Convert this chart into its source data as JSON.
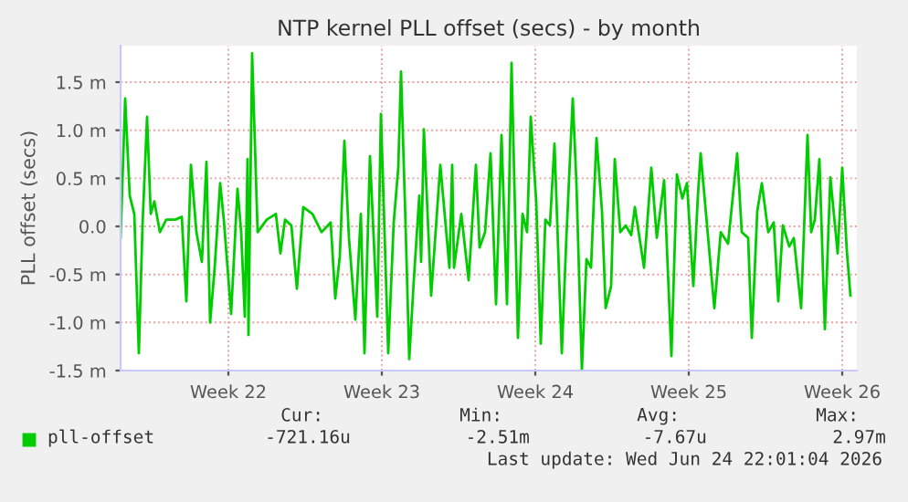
{
  "chart_data": {
    "type": "line",
    "title": "NTP kernel PLL offset (secs) - by month",
    "ylabel": "PLL offset (secs)",
    "x": [
      "2026-05-23T16:00",
      "2026-05-23T21:00",
      "2026-05-24T02:00",
      "2026-05-24T07:00",
      "2026-05-24T12:00",
      "2026-05-24T16:00",
      "2026-05-24T21:00",
      "2026-05-25T01:00",
      "2026-05-25T05:00",
      "2026-05-25T11:00",
      "2026-05-25T18:00",
      "2026-05-26T04:00",
      "2026-05-26T11:00",
      "2026-05-26T16:00",
      "2026-05-26T21:00",
      "2026-05-27T03:00",
      "2026-05-27T09:00",
      "2026-05-27T14:00",
      "2026-05-27T18:00",
      "2026-05-27T23:00",
      "2026-05-28T05:00",
      "2026-05-28T09:00",
      "2026-05-28T17:00",
      "2026-05-29T00:00",
      "2026-05-29T04:00",
      "2026-05-29T08:00",
      "2026-05-29T11:00",
      "2026-05-29T12:00",
      "2026-05-29T16:00",
      "2026-05-29T22:00",
      "2026-05-30T08:00",
      "2026-05-30T18:00",
      "2026-05-30T23:00",
      "2026-05-31T04:00",
      "2026-05-31T11:00",
      "2026-05-31T17:00",
      "2026-06-01T00:00",
      "2026-06-01T10:00",
      "2026-06-01T20:00",
      "2026-06-02T06:00",
      "2026-06-02T11:00",
      "2026-06-02T16:00",
      "2026-06-02T21:00",
      "2026-06-03T02:00",
      "2026-06-03T09:00",
      "2026-06-03T15:00",
      "2026-06-03T19:00",
      "2026-06-04T01:00",
      "2026-06-04T09:00",
      "2026-06-04T13:00",
      "2026-06-04T21:00",
      "2026-06-05T03:00",
      "2026-06-05T08:00",
      "2026-06-05T11:00",
      "2026-06-05T16:00",
      "2026-06-05T20:00",
      "2026-06-06T01:00",
      "2026-06-06T07:00",
      "2026-06-06T09:00",
      "2026-06-06T12:00",
      "2026-06-06T20:00",
      "2026-06-07T06:00",
      "2026-06-07T16:00",
      "2026-06-07T19:00",
      "2026-06-07T21:00",
      "2026-06-08T05:00",
      "2026-06-08T13:00",
      "2026-06-08T21:00",
      "2026-06-09T01:00",
      "2026-06-09T07:00",
      "2026-06-09T13:00",
      "2026-06-09T19:00",
      "2026-06-10T01:00",
      "2026-06-10T07:00",
      "2026-06-10T12:00",
      "2026-06-10T19:00",
      "2026-06-11T00:00",
      "2026-06-11T05:00",
      "2026-06-11T09:00",
      "2026-06-11T15:00",
      "2026-06-11T20:00",
      "2026-06-12T01:00",
      "2026-06-12T06:00",
      "2026-06-12T11:00",
      "2026-06-12T19:00",
      "2026-06-13T00:00",
      "2026-06-13T07:00",
      "2026-06-13T11:00",
      "2026-06-13T17:00",
      "2026-06-13T22:00",
      "2026-06-14T03:00",
      "2026-06-14T09:00",
      "2026-06-14T15:00",
      "2026-06-14T19:00",
      "2026-06-15T01:00",
      "2026-06-15T05:00",
      "2026-06-15T11:00",
      "2026-06-15T17:00",
      "2026-06-15T23:00",
      "2026-06-16T03:00",
      "2026-06-16T13:00",
      "2026-06-16T21:00",
      "2026-06-17T03:00",
      "2026-06-17T11:00",
      "2026-06-17T19:00",
      "2026-06-18T01:00",
      "2026-06-18T07:00",
      "2026-06-18T12:00",
      "2026-06-18T19:00",
      "2026-06-19T00:00",
      "2026-06-19T03:00",
      "2026-06-19T10:00",
      "2026-06-19T18:00",
      "2026-06-20T01:00",
      "2026-06-20T09:00",
      "2026-06-20T19:00",
      "2026-06-21T00:00",
      "2026-06-21T07:00",
      "2026-06-21T11:00",
      "2026-06-21T17:00",
      "2026-06-21T22:00",
      "2026-06-22T05:00",
      "2026-06-22T11:00",
      "2026-06-22T16:00",
      "2026-06-22T21:00",
      "2026-06-23T04:00",
      "2026-06-23T09:00",
      "2026-06-23T17:00",
      "2026-06-24T00:00",
      "2026-06-24T04:00",
      "2026-06-24T08:00",
      "2026-06-24T13:00",
      "2026-06-24T19:00",
      "2026-06-25T01:00",
      "2026-06-25T09:00",
      "2026-06-25T14:00",
      "2026-06-25T19:00",
      "2026-06-25T23:00"
    ],
    "series": [
      {
        "name": "pll-offset",
        "color": "#00cc00",
        "values": [
          -0.12,
          1.33,
          0.32,
          0.13,
          -1.32,
          0.01,
          1.14,
          0.13,
          0.26,
          -0.06,
          0.07,
          0.07,
          0.1,
          -0.78,
          0.64,
          -0.06,
          -0.37,
          0.67,
          -1.0,
          -0.43,
          0.45,
          0.07,
          -0.91,
          0.39,
          -0.06,
          -0.94,
          0.7,
          -1.13,
          1.8,
          -0.06,
          0.07,
          0.13,
          -0.28,
          0.07,
          0.01,
          -0.65,
          0.2,
          0.13,
          -0.06,
          0.04,
          -0.75,
          -0.31,
          0.89,
          -0.12,
          -0.97,
          0.13,
          -1.32,
          0.73,
          -0.94,
          1.17,
          -1.32,
          0.04,
          0.61,
          1.61,
          0.01,
          -1.38,
          -0.56,
          0.32,
          -0.37,
          1.01,
          -0.72,
          0.64,
          -0.43,
          0.64,
          -0.43,
          0.13,
          -0.56,
          0.64,
          -0.22,
          -0.06,
          0.76,
          -0.81,
          0.95,
          -0.81,
          1.7,
          -1.16,
          0.13,
          -0.06,
          1.14,
          0.26,
          -1.22,
          0.07,
          0.01,
          0.86,
          -1.32,
          -0.12,
          1.33,
          0.45,
          -1.49,
          -0.34,
          -0.43,
          0.92,
          0.16,
          -0.85,
          -0.62,
          0.7,
          -0.06,
          0.01,
          -0.09,
          0.2,
          -0.43,
          0.61,
          -0.12,
          0.48,
          -1.35,
          0.54,
          0.29,
          0.45,
          -0.62,
          0.32,
          0.76,
          0.01,
          -0.85,
          -0.06,
          -0.18,
          0.76,
          -0.06,
          -0.12,
          -1.16,
          0.16,
          0.45,
          -0.06,
          0.04,
          -0.78,
          0.01,
          -0.21,
          -0.12,
          -0.85,
          0.95,
          -0.06,
          0.07,
          0.7,
          -1.07,
          0.51,
          -0.28,
          0.61,
          -0.25,
          -0.72
        ]
      }
    ],
    "xlim": [
      "2026-05-23T16:00",
      "2026-06-26T06:00"
    ],
    "xticks": [
      {
        "value": "2026-05-28T14:00",
        "label": "Week 22"
      },
      {
        "value": "2026-06-04T14:00",
        "label": "Week 23"
      },
      {
        "value": "2026-06-11T14:00",
        "label": "Week 24"
      },
      {
        "value": "2026-06-18T14:00",
        "label": "Week 25"
      },
      {
        "value": "2026-06-25T14:00",
        "label": "Week 26"
      }
    ],
    "ylim": [
      -1.5,
      1.88
    ],
    "yticks": [
      {
        "value": -1.5,
        "label": "-1.5 m"
      },
      {
        "value": -1.0,
        "label": "-1.0 m"
      },
      {
        "value": -0.5,
        "label": "-0.5 m"
      },
      {
        "value": 0.0,
        "label": "0.0"
      },
      {
        "value": 0.5,
        "label": "0.5 m"
      },
      {
        "value": 1.0,
        "label": "1.0 m"
      },
      {
        "value": 1.5,
        "label": "1.5 m"
      }
    ],
    "grid": true,
    "legend": "bottom",
    "line_style": "solid",
    "marker": "none",
    "annotations": [
      "Cur:",
      "Min:",
      "Avg:",
      "Max:",
      "-721.16u",
      "-2.51m",
      "-7.67u",
      "2.97m",
      "Last update: Wed Jun 24 22:01:04 2026"
    ]
  }
}
